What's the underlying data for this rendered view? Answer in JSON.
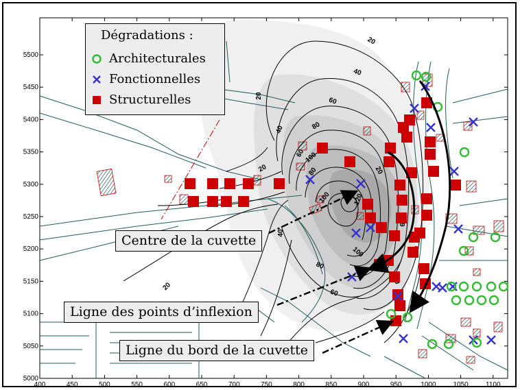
{
  "legend": {
    "title": "Dégradations :",
    "items": [
      {
        "label": "Architecturales",
        "symbol": "circle",
        "color": "#33bb33"
      },
      {
        "label": "Fonctionnelles",
        "symbol": "x",
        "color": "#3333cc"
      },
      {
        "label": "Structurelles",
        "symbol": "square",
        "color": "#cc0000"
      }
    ]
  },
  "annotations": {
    "center": "Centre de la cuvette",
    "inflexion": "Ligne des points d’inflexion",
    "edge": "Ligne du bord de la cuvette"
  },
  "axes": {
    "x_ticks": [
      "400",
      "450",
      "500",
      "550",
      "600",
      "650",
      "700",
      "750",
      "800",
      "850",
      "900",
      "950",
      "1000",
      "1050",
      "1100"
    ],
    "y_ticks": [
      "5000",
      "5050",
      "5100",
      "5150",
      "5200",
      "5250",
      "5300",
      "5350",
      "5400",
      "5450",
      "5500"
    ]
  },
  "contour_labels": [
    "20",
    "40",
    "60",
    "80",
    "100",
    "120",
    "20",
    "40",
    "60",
    "80",
    "100",
    "20",
    "40",
    "60",
    "80",
    "100",
    "20",
    "40",
    "60",
    "20",
    "20"
  ],
  "colors": {
    "structural": "#cc0000",
    "functional": "#3333cc",
    "architectural": "#33bb33",
    "contour": "#000000",
    "road": "#1f5a5a"
  }
}
